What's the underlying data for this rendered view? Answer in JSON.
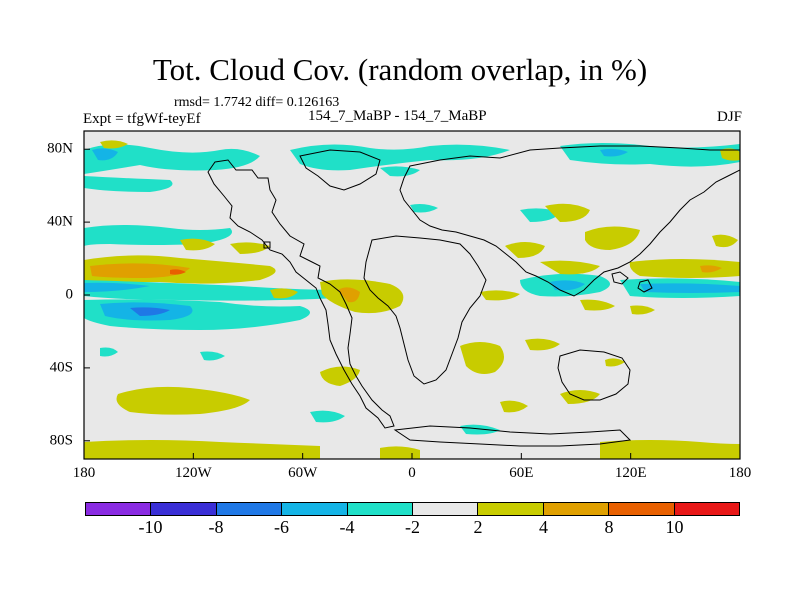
{
  "title": "Tot. Cloud Cov. (random overlap, in %)",
  "stats": "rmsd= 1.7742  diff= 0.126163",
  "expt": "Expt = tfgWf-teyEf",
  "subtitle": "154_7_MaBP - 154_7_MaBP",
  "season": "DJF",
  "x_ticks": [
    "180",
    "120W",
    "60W",
    "0",
    "60E",
    "120E",
    "180"
  ],
  "y_ticks": [
    "80N",
    "40N",
    "0",
    "40S",
    "80S"
  ],
  "colorbar": {
    "colors": [
      "#8a2be2",
      "#3a2fd6",
      "#1f78e6",
      "#14b4e6",
      "#20e0c8",
      "#e8e8e8",
      "#c8cc00",
      "#e0a000",
      "#e86000",
      "#e81818"
    ],
    "labels": [
      "-10",
      "-8",
      "-6",
      "-4",
      "-2",
      "2",
      "4",
      "8",
      "10"
    ]
  },
  "fill_colors": {
    "background": "#e8e8e8",
    "neg_2_4": "#20e0c8",
    "neg_4_6": "#14b4e6",
    "neg_6_8": "#1f78e6",
    "pos_2_4": "#c8cc00",
    "pos_4_8": "#e0a000",
    "pos_8_10": "#e86000"
  }
}
